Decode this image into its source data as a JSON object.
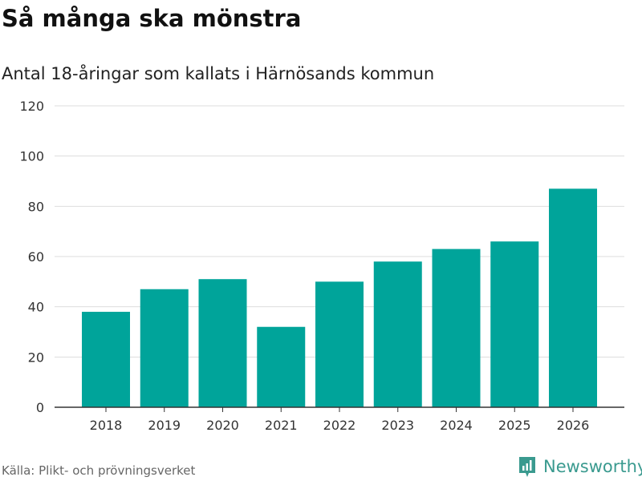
{
  "chart_data": {
    "type": "bar",
    "title": "Så många ska mönstra",
    "subtitle": "Antal 18-åringar som kallats i Härnösands kommun",
    "categories": [
      "2018",
      "2019",
      "2020",
      "2021",
      "2022",
      "2023",
      "2024",
      "2025",
      "2026"
    ],
    "values": [
      38,
      47,
      51,
      32,
      50,
      58,
      63,
      66,
      87
    ],
    "ylim": [
      0,
      120
    ],
    "yticks": [
      0,
      20,
      40,
      60,
      80,
      100,
      120
    ],
    "xlabel": "",
    "ylabel": "",
    "grid": true,
    "bar_color": "#00a49a"
  },
  "source": "Källa: Plikt- och prövningsverket",
  "logo": "Newsworthy"
}
